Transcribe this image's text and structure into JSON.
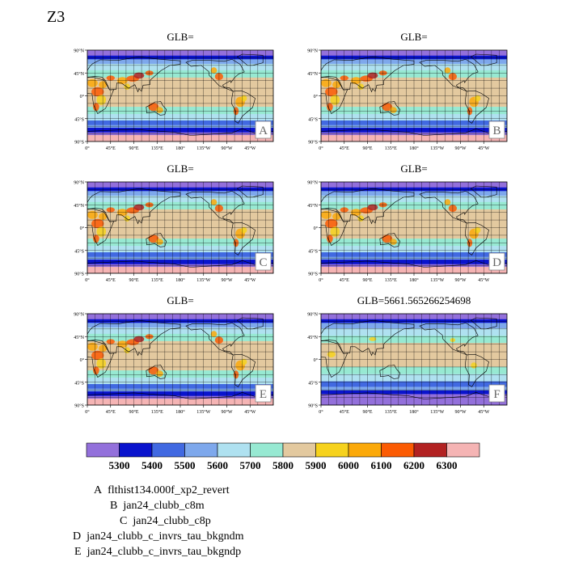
{
  "title": "Z3",
  "chart_data": {
    "type": "heatmap",
    "colorbar": {
      "colors": [
        "#9370db",
        "#0a14cd",
        "#4169e1",
        "#7ea8ec",
        "#afe1f0",
        "#97e9d2",
        "#e3c99f",
        "#f6d21d",
        "#fba90a",
        "#fb5b03",
        "#b22222",
        "#f5b4b4"
      ],
      "labels": [
        "5300",
        "5400",
        "5500",
        "5600",
        "5700",
        "5800",
        "5900",
        "6000",
        "6100",
        "6200",
        "6300"
      ]
    },
    "lat_ticks": [
      "90°N",
      "45°N",
      "0°",
      "45°S",
      "90°S"
    ],
    "lon_ticks": [
      "0°",
      "45°E",
      "90°E",
      "135°E",
      "180°",
      "135°W",
      "90°W",
      "45°W"
    ],
    "panels": [
      {
        "title": "GLB=",
        "label": "A"
      },
      {
        "title": "GLB=",
        "label": "B"
      },
      {
        "title": "GLB=",
        "label": "C"
      },
      {
        "title": "GLB=",
        "label": "D"
      },
      {
        "title": "GLB=",
        "label": "E"
      },
      {
        "title": "GLB=5661.565266254698",
        "label": "F"
      }
    ],
    "cases": [
      {
        "letter": "A",
        "name": "flthist134.000f_xp2_revert"
      },
      {
        "letter": "B",
        "name": "jan24_clubb_c8m"
      },
      {
        "letter": "C",
        "name": "jan24_clubb_c8p"
      },
      {
        "letter": "D",
        "name": "jan24_clubb_c_invrs_tau_bkgndm"
      },
      {
        "letter": "E",
        "name": "jan24_clubb_c_invrs_tau_bkgndp"
      }
    ]
  }
}
